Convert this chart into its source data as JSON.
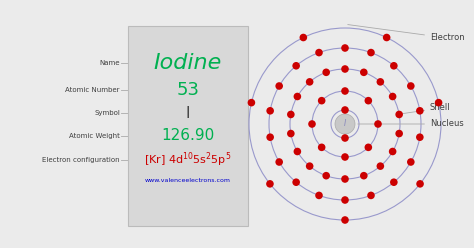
{
  "bg_color": "#ebebeb",
  "element_name": "Iodine",
  "atomic_number": "53",
  "symbol": "I",
  "atomic_weight": "126.90",
  "website": "www.valenceelectrons.com",
  "name_color": "#00b050",
  "number_color": "#00b050",
  "symbol_color": "#404040",
  "weight_color": "#00b050",
  "config_color": "#cc0000",
  "website_color": "#0000cc",
  "label_color": "#404040",
  "nucleus_fill": "#c8c8c8",
  "nucleus_edge": "#aaaaaa",
  "nucleus_text_color": "#8888bb",
  "shell_edge_color": "#9999cc",
  "electron_color": "#cc0000",
  "electron_counts": [
    2,
    8,
    18,
    18,
    7
  ],
  "annotation_color": "#404040",
  "line_color": "#aaaaaa",
  "box_bg": "#d8d8d8",
  "box_edge": "#bbbbbb"
}
